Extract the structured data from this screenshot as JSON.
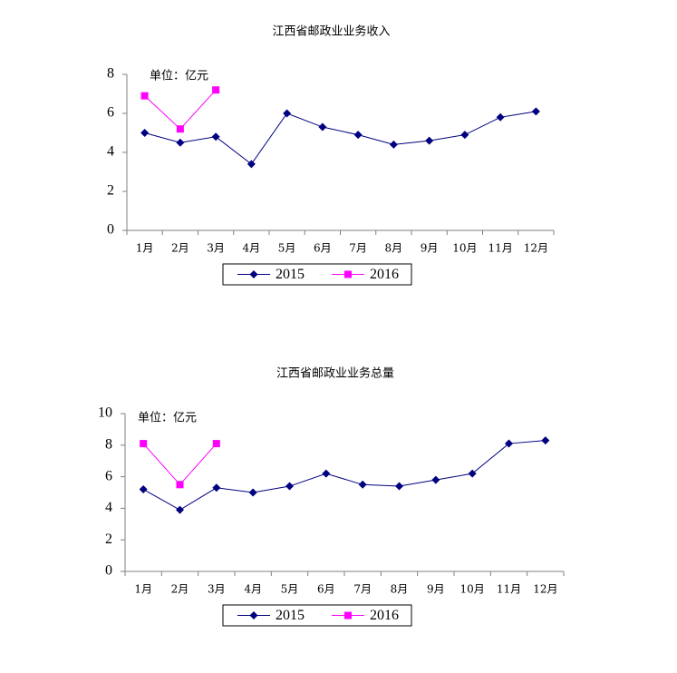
{
  "chart_data": [
    {
      "type": "line",
      "title": "江西省邮政业业务收入",
      "annotation": "单位：亿元",
      "categories": [
        "1月",
        "2月",
        "3月",
        "4月",
        "5月",
        "6月",
        "7月",
        "8月",
        "9月",
        "10月",
        "11月",
        "12月"
      ],
      "series": [
        {
          "name": "2015",
          "color": "#000080",
          "marker": "diamond",
          "values": [
            5.0,
            4.5,
            4.8,
            3.4,
            6.0,
            5.3,
            4.9,
            4.4,
            4.6,
            4.9,
            5.8,
            6.1
          ]
        },
        {
          "name": "2016",
          "color": "#ff00ff",
          "marker": "square",
          "values": [
            6.9,
            5.2,
            7.2,
            null,
            null,
            null,
            null,
            null,
            null,
            null,
            null,
            null
          ]
        }
      ],
      "ylim": [
        0,
        8
      ],
      "yticks": [
        0,
        2,
        4,
        6,
        8
      ],
      "legend": "bottom"
    },
    {
      "type": "line",
      "title": "江西省邮政业业务总量",
      "annotation": "单位：亿元",
      "categories": [
        "1月",
        "2月",
        "3月",
        "4月",
        "5月",
        "6月",
        "7月",
        "8月",
        "9月",
        "10月",
        "11月",
        "12月"
      ],
      "series": [
        {
          "name": "2015",
          "color": "#000080",
          "marker": "diamond",
          "values": [
            5.2,
            3.9,
            5.3,
            5.0,
            5.4,
            6.2,
            5.5,
            5.4,
            5.8,
            6.2,
            8.1,
            8.3
          ]
        },
        {
          "name": "2016",
          "color": "#ff00ff",
          "marker": "square",
          "values": [
            8.1,
            5.5,
            8.1,
            null,
            null,
            null,
            null,
            null,
            null,
            null,
            null,
            null
          ]
        }
      ],
      "ylim": [
        0,
        10
      ],
      "yticks": [
        0,
        2,
        4,
        6,
        8,
        10
      ],
      "legend": "bottom"
    }
  ]
}
